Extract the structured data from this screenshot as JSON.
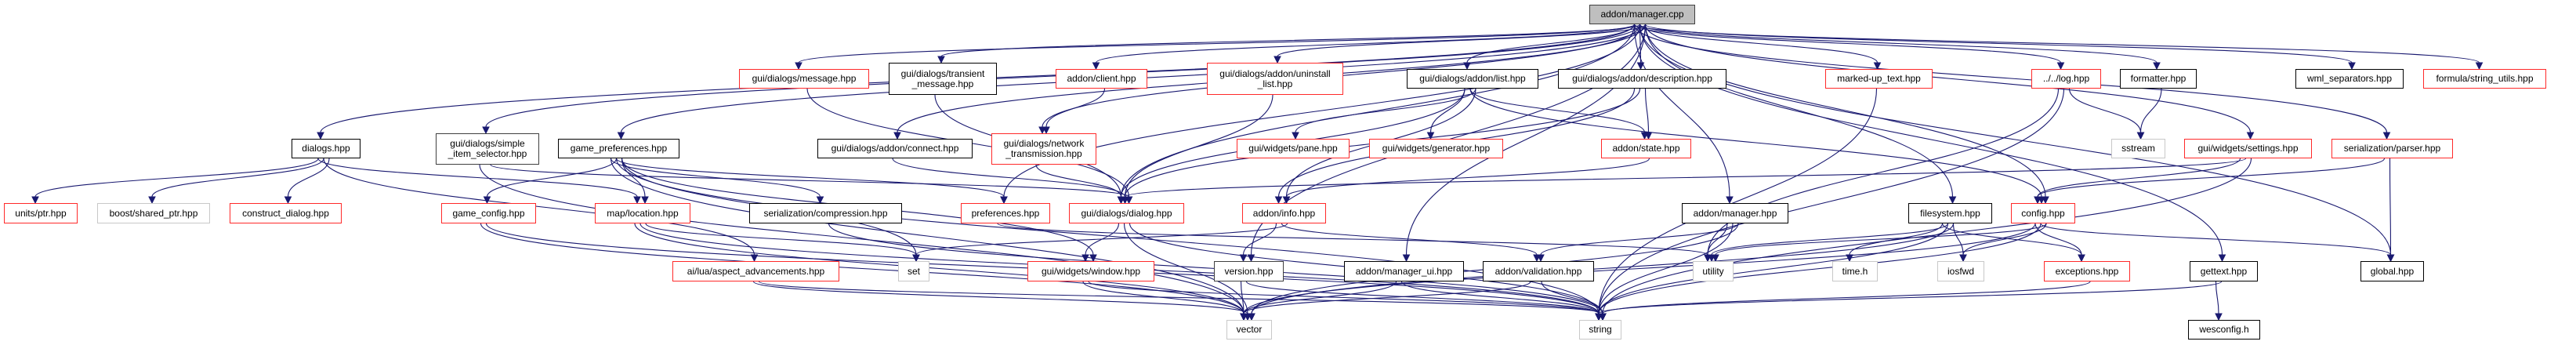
{
  "colors": {
    "edge": "#191970",
    "truncated_border": "#ff2a2a",
    "external_border": "#c8c8c8",
    "node_border": "#000000",
    "root_fill": "#bfbfbf"
  },
  "nodes": [
    {
      "id": "manager_cpp",
      "label": "addon/manager.cpp",
      "kind": "main"
    },
    {
      "id": "msg",
      "label": "gui/dialogs/message.hpp",
      "kind": "red"
    },
    {
      "id": "transient",
      "label": "gui/dialogs/transient\n_message.hpp",
      "kind": "black"
    },
    {
      "id": "client",
      "label": "addon/client.hpp",
      "kind": "red"
    },
    {
      "id": "uninstall",
      "label": "gui/dialogs/addon/uninstall\n_list.hpp",
      "kind": "red"
    },
    {
      "id": "list",
      "label": "gui/dialogs/addon/list.hpp",
      "kind": "black"
    },
    {
      "id": "description",
      "label": "gui/dialogs/addon/description.hpp",
      "kind": "black"
    },
    {
      "id": "markedup",
      "label": "marked-up_text.hpp",
      "kind": "red"
    },
    {
      "id": "log",
      "label": "../../log.hpp",
      "kind": "red"
    },
    {
      "id": "formatter",
      "label": "formatter.hpp",
      "kind": "black"
    },
    {
      "id": "wmlsep",
      "label": "wml_separators.hpp",
      "kind": "black"
    },
    {
      "id": "strutils",
      "label": "formula/string_utils.hpp",
      "kind": "red"
    },
    {
      "id": "dialogs",
      "label": "dialogs.hpp",
      "kind": "black"
    },
    {
      "id": "simple",
      "label": "gui/dialogs/simple\n_item_selector.hpp",
      "kind": "dark"
    },
    {
      "id": "gameprefs",
      "label": "game_preferences.hpp",
      "kind": "black"
    },
    {
      "id": "connect",
      "label": "gui/dialogs/addon/connect.hpp",
      "kind": "black"
    },
    {
      "id": "network",
      "label": "gui/dialogs/network\n_transmission.hpp",
      "kind": "red"
    },
    {
      "id": "pane",
      "label": "gui/widgets/pane.hpp",
      "kind": "red"
    },
    {
      "id": "generator",
      "label": "gui/widgets/generator.hpp",
      "kind": "red"
    },
    {
      "id": "state",
      "label": "addon/state.hpp",
      "kind": "red"
    },
    {
      "id": "sstream",
      "label": "sstream",
      "kind": "gray"
    },
    {
      "id": "settings",
      "label": "gui/widgets/settings.hpp",
      "kind": "red"
    },
    {
      "id": "parser",
      "label": "serialization/parser.hpp",
      "kind": "red"
    },
    {
      "id": "unitsptr",
      "label": "units/ptr.hpp",
      "kind": "red"
    },
    {
      "id": "sharedptr",
      "label": "boost/shared_ptr.hpp",
      "kind": "gray"
    },
    {
      "id": "construct",
      "label": "construct_dialog.hpp",
      "kind": "red"
    },
    {
      "id": "gameconfig",
      "label": "game_config.hpp",
      "kind": "red"
    },
    {
      "id": "location",
      "label": "map/location.hpp",
      "kind": "red"
    },
    {
      "id": "compression",
      "label": "serialization/compression.hpp",
      "kind": "black"
    },
    {
      "id": "preferences",
      "label": "preferences.hpp",
      "kind": "red"
    },
    {
      "id": "dialog",
      "label": "gui/dialogs/dialog.hpp",
      "kind": "red"
    },
    {
      "id": "info",
      "label": "addon/info.hpp",
      "kind": "red"
    },
    {
      "id": "manager_hpp",
      "label": "addon/manager.hpp",
      "kind": "black"
    },
    {
      "id": "filesystem",
      "label": "filesystem.hpp",
      "kind": "black"
    },
    {
      "id": "config",
      "label": "config.hpp",
      "kind": "red"
    },
    {
      "id": "aspect",
      "label": "ai/lua/aspect_advancements.hpp",
      "kind": "red"
    },
    {
      "id": "set",
      "label": "set",
      "kind": "gray"
    },
    {
      "id": "window",
      "label": "gui/widgets/window.hpp",
      "kind": "red"
    },
    {
      "id": "version",
      "label": "version.hpp",
      "kind": "dark"
    },
    {
      "id": "manager_ui",
      "label": "addon/manager_ui.hpp",
      "kind": "black"
    },
    {
      "id": "validation",
      "label": "addon/validation.hpp",
      "kind": "black"
    },
    {
      "id": "utility",
      "label": "utility",
      "kind": "gray"
    },
    {
      "id": "timeh",
      "label": "time.h",
      "kind": "gray"
    },
    {
      "id": "iosfwd",
      "label": "iosfwd",
      "kind": "gray"
    },
    {
      "id": "exceptions",
      "label": "exceptions.hpp",
      "kind": "red"
    },
    {
      "id": "gettext",
      "label": "gettext.hpp",
      "kind": "black"
    },
    {
      "id": "global",
      "label": "global.hpp",
      "kind": "black"
    },
    {
      "id": "vector",
      "label": "vector",
      "kind": "gray"
    },
    {
      "id": "string",
      "label": "string",
      "kind": "gray"
    },
    {
      "id": "wesconfig",
      "label": "wesconfig.h",
      "kind": "black"
    }
  ],
  "edges": [
    [
      "manager_cpp",
      "dialogs"
    ],
    [
      "manager_cpp",
      "simple"
    ],
    [
      "manager_cpp",
      "gameprefs"
    ],
    [
      "manager_cpp",
      "msg"
    ],
    [
      "manager_cpp",
      "transient"
    ],
    [
      "manager_cpp",
      "connect"
    ],
    [
      "manager_cpp",
      "client"
    ],
    [
      "manager_cpp",
      "network"
    ],
    [
      "manager_cpp",
      "uninstall"
    ],
    [
      "manager_cpp",
      "list"
    ],
    [
      "manager_cpp",
      "description"
    ],
    [
      "manager_cpp",
      "version"
    ],
    [
      "manager_cpp",
      "manager_hpp"
    ],
    [
      "manager_cpp",
      "markedup"
    ],
    [
      "manager_cpp",
      "filesystem"
    ],
    [
      "manager_cpp",
      "log"
    ],
    [
      "manager_cpp",
      "formatter"
    ],
    [
      "manager_cpp",
      "settings"
    ],
    [
      "manager_cpp",
      "parser"
    ],
    [
      "manager_cpp",
      "gettext"
    ],
    [
      "manager_cpp",
      "wmlsep"
    ],
    [
      "manager_cpp",
      "strutils"
    ],
    [
      "manager_cpp",
      "global"
    ],
    [
      "manager_cpp",
      "manager_ui"
    ],
    [
      "manager_cpp",
      "dialog"
    ],
    [
      "manager_cpp",
      "preferences"
    ],
    [
      "manager_cpp",
      "config"
    ],
    [
      "dialogs",
      "unitsptr"
    ],
    [
      "dialogs",
      "sharedptr"
    ],
    [
      "dialogs",
      "construct"
    ],
    [
      "dialogs",
      "location"
    ],
    [
      "dialogs",
      "aspect"
    ],
    [
      "simple",
      "dialog"
    ],
    [
      "simple",
      "vector"
    ],
    [
      "gameprefs",
      "gameconfig"
    ],
    [
      "gameprefs",
      "location"
    ],
    [
      "gameprefs",
      "compression"
    ],
    [
      "gameprefs",
      "preferences"
    ],
    [
      "gameprefs",
      "set"
    ],
    [
      "gameprefs",
      "vector"
    ],
    [
      "gameprefs",
      "string"
    ],
    [
      "gameprefs",
      "window"
    ],
    [
      "gameconfig",
      "vector"
    ],
    [
      "gameconfig",
      "string"
    ],
    [
      "location",
      "set"
    ],
    [
      "location",
      "vector"
    ],
    [
      "location",
      "string"
    ],
    [
      "msg",
      "dialog"
    ],
    [
      "transient",
      "dialog"
    ],
    [
      "connect",
      "dialog"
    ],
    [
      "client",
      "network"
    ],
    [
      "network",
      "dialog"
    ],
    [
      "uninstall",
      "dialog"
    ],
    [
      "list",
      "pane"
    ],
    [
      "list",
      "generator"
    ],
    [
      "list",
      "state"
    ],
    [
      "list",
      "info"
    ],
    [
      "list",
      "dialog"
    ],
    [
      "list",
      "config"
    ],
    [
      "description",
      "state"
    ],
    [
      "description",
      "info"
    ],
    [
      "description",
      "dialog"
    ],
    [
      "state",
      "info"
    ],
    [
      "info",
      "version"
    ],
    [
      "info",
      "validation"
    ],
    [
      "info",
      "set"
    ],
    [
      "dialog",
      "window"
    ],
    [
      "dialog",
      "vector"
    ],
    [
      "dialog",
      "string"
    ],
    [
      "window",
      "vector"
    ],
    [
      "window",
      "string"
    ],
    [
      "compression",
      "string"
    ],
    [
      "preferences",
      "utility"
    ],
    [
      "aspect",
      "vector"
    ],
    [
      "aspect",
      "string"
    ],
    [
      "version",
      "vector"
    ],
    [
      "version",
      "string"
    ],
    [
      "manager_hpp",
      "validation"
    ],
    [
      "manager_hpp",
      "utility"
    ],
    [
      "manager_hpp",
      "string"
    ],
    [
      "manager_hpp",
      "vector"
    ],
    [
      "manager_ui",
      "vector"
    ],
    [
      "manager_ui",
      "string"
    ],
    [
      "validation",
      "string"
    ],
    [
      "validation",
      "vector"
    ],
    [
      "markedup",
      "string"
    ],
    [
      "log",
      "sstream"
    ],
    [
      "log",
      "utility"
    ],
    [
      "log",
      "string"
    ],
    [
      "formatter",
      "sstream"
    ],
    [
      "settings",
      "config"
    ],
    [
      "settings",
      "dialog"
    ],
    [
      "settings",
      "string"
    ],
    [
      "parser",
      "config"
    ],
    [
      "parser",
      "global"
    ],
    [
      "filesystem",
      "iosfwd"
    ],
    [
      "filesystem",
      "timeh"
    ],
    [
      "filesystem",
      "string"
    ],
    [
      "filesystem",
      "vector"
    ],
    [
      "filesystem",
      "exceptions"
    ],
    [
      "filesystem",
      "utility"
    ],
    [
      "config",
      "iosfwd"
    ],
    [
      "config",
      "exceptions"
    ],
    [
      "config",
      "global"
    ],
    [
      "config",
      "utility"
    ],
    [
      "config",
      "vector"
    ],
    [
      "config",
      "string"
    ],
    [
      "exceptions",
      "string"
    ],
    [
      "gettext",
      "wesconfig"
    ],
    [
      "gettext",
      "string"
    ]
  ]
}
